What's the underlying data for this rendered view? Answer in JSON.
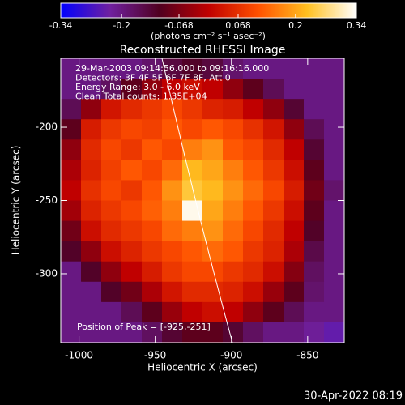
{
  "chart_data": {
    "type": "heatmap",
    "title": "Reconstructed RHESSI Image",
    "colorbar_label": "(photons cm⁻² s⁻¹ asec⁻²)",
    "colorbar_lim": [
      -0.34,
      0.34
    ],
    "colorbar_ticks": [
      -0.34,
      -0.2,
      -0.068,
      0.068,
      0.2,
      0.34
    ],
    "colormap": [
      "#0000ff",
      "#7020a0",
      "#500020",
      "#c00000",
      "#ff5000",
      "#ffc020",
      "#ffffff"
    ],
    "x_label": "Heliocentric X (arcsec)",
    "y_label": "Heliocentric Y (arcsec)",
    "xlim": [
      -1012,
      -826
    ],
    "ylim": [
      -347,
      -153
    ],
    "xticks": [
      -1000,
      -950,
      -900,
      -850
    ],
    "yticks": [
      -200,
      -250,
      -300
    ],
    "annotations": [
      "29-Mar-2003 09:14:56.000 to 09:16:16.000",
      "Detectors: 3F 4F 5F 6F 7F 8F, Att 0",
      "Energy Range: 3.0 - 6.0 keV",
      "Clean     Total counts: 1.35E+04"
    ],
    "peak_label": "Position of Peak = [-925,-251]",
    "footer": "30-Apr-2022 08:19",
    "z": [
      [
        -0.2,
        -0.2,
        -0.2,
        -0.2,
        -0.18,
        -0.14,
        -0.12,
        -0.14,
        -0.18,
        -0.2,
        -0.2,
        -0.2,
        -0.2,
        -0.2
      ],
      [
        -0.2,
        -0.2,
        -0.17,
        -0.1,
        -0.05,
        0.0,
        0.02,
        0.0,
        -0.05,
        -0.1,
        -0.16,
        -0.2,
        -0.2,
        -0.2
      ],
      [
        -0.16,
        -0.05,
        0.03,
        0.06,
        0.08,
        0.1,
        0.08,
        0.05,
        0.04,
        0.0,
        -0.05,
        -0.13,
        -0.2,
        -0.2
      ],
      [
        -0.1,
        0.04,
        0.08,
        0.1,
        0.09,
        0.12,
        0.1,
        0.12,
        0.1,
        0.07,
        0.03,
        -0.05,
        -0.16,
        -0.2
      ],
      [
        -0.05,
        0.06,
        0.1,
        0.08,
        0.12,
        0.1,
        0.16,
        0.18,
        0.12,
        0.1,
        0.06,
        0.0,
        -0.13,
        -0.2
      ],
      [
        -0.02,
        0.05,
        0.09,
        0.12,
        0.1,
        0.14,
        0.22,
        0.2,
        0.16,
        0.12,
        0.08,
        0.02,
        -0.1,
        -0.2
      ],
      [
        0.0,
        0.07,
        0.1,
        0.08,
        0.12,
        0.18,
        0.24,
        0.22,
        0.18,
        0.14,
        0.1,
        0.04,
        -0.08,
        -0.18
      ],
      [
        -0.03,
        0.05,
        0.08,
        0.1,
        0.13,
        0.16,
        0.33,
        0.2,
        0.16,
        0.12,
        0.08,
        0.02,
        -0.1,
        -0.2
      ],
      [
        -0.08,
        0.02,
        0.06,
        0.08,
        0.1,
        0.14,
        0.16,
        0.18,
        0.14,
        0.1,
        0.06,
        0.0,
        -0.12,
        -0.2
      ],
      [
        -0.12,
        -0.05,
        0.02,
        0.05,
        0.08,
        0.1,
        0.12,
        0.14,
        0.12,
        0.08,
        0.05,
        -0.02,
        -0.15,
        -0.2
      ],
      [
        -0.2,
        -0.12,
        -0.05,
        0.0,
        0.04,
        0.08,
        0.1,
        0.1,
        0.08,
        0.06,
        0.02,
        -0.06,
        -0.17,
        -0.2
      ],
      [
        -0.2,
        -0.2,
        -0.12,
        -0.08,
        -0.02,
        0.03,
        0.06,
        0.06,
        0.05,
        0.02,
        -0.04,
        -0.1,
        -0.18,
        -0.2
      ],
      [
        -0.2,
        -0.2,
        -0.2,
        -0.16,
        -0.1,
        -0.04,
        0.0,
        0.02,
        0.0,
        -0.05,
        -0.1,
        -0.16,
        -0.2,
        -0.2
      ],
      [
        -0.2,
        -0.2,
        -0.2,
        -0.2,
        -0.17,
        -0.13,
        -0.1,
        -0.1,
        -0.13,
        -0.17,
        -0.2,
        -0.2,
        -0.22,
        -0.24
      ]
    ]
  }
}
